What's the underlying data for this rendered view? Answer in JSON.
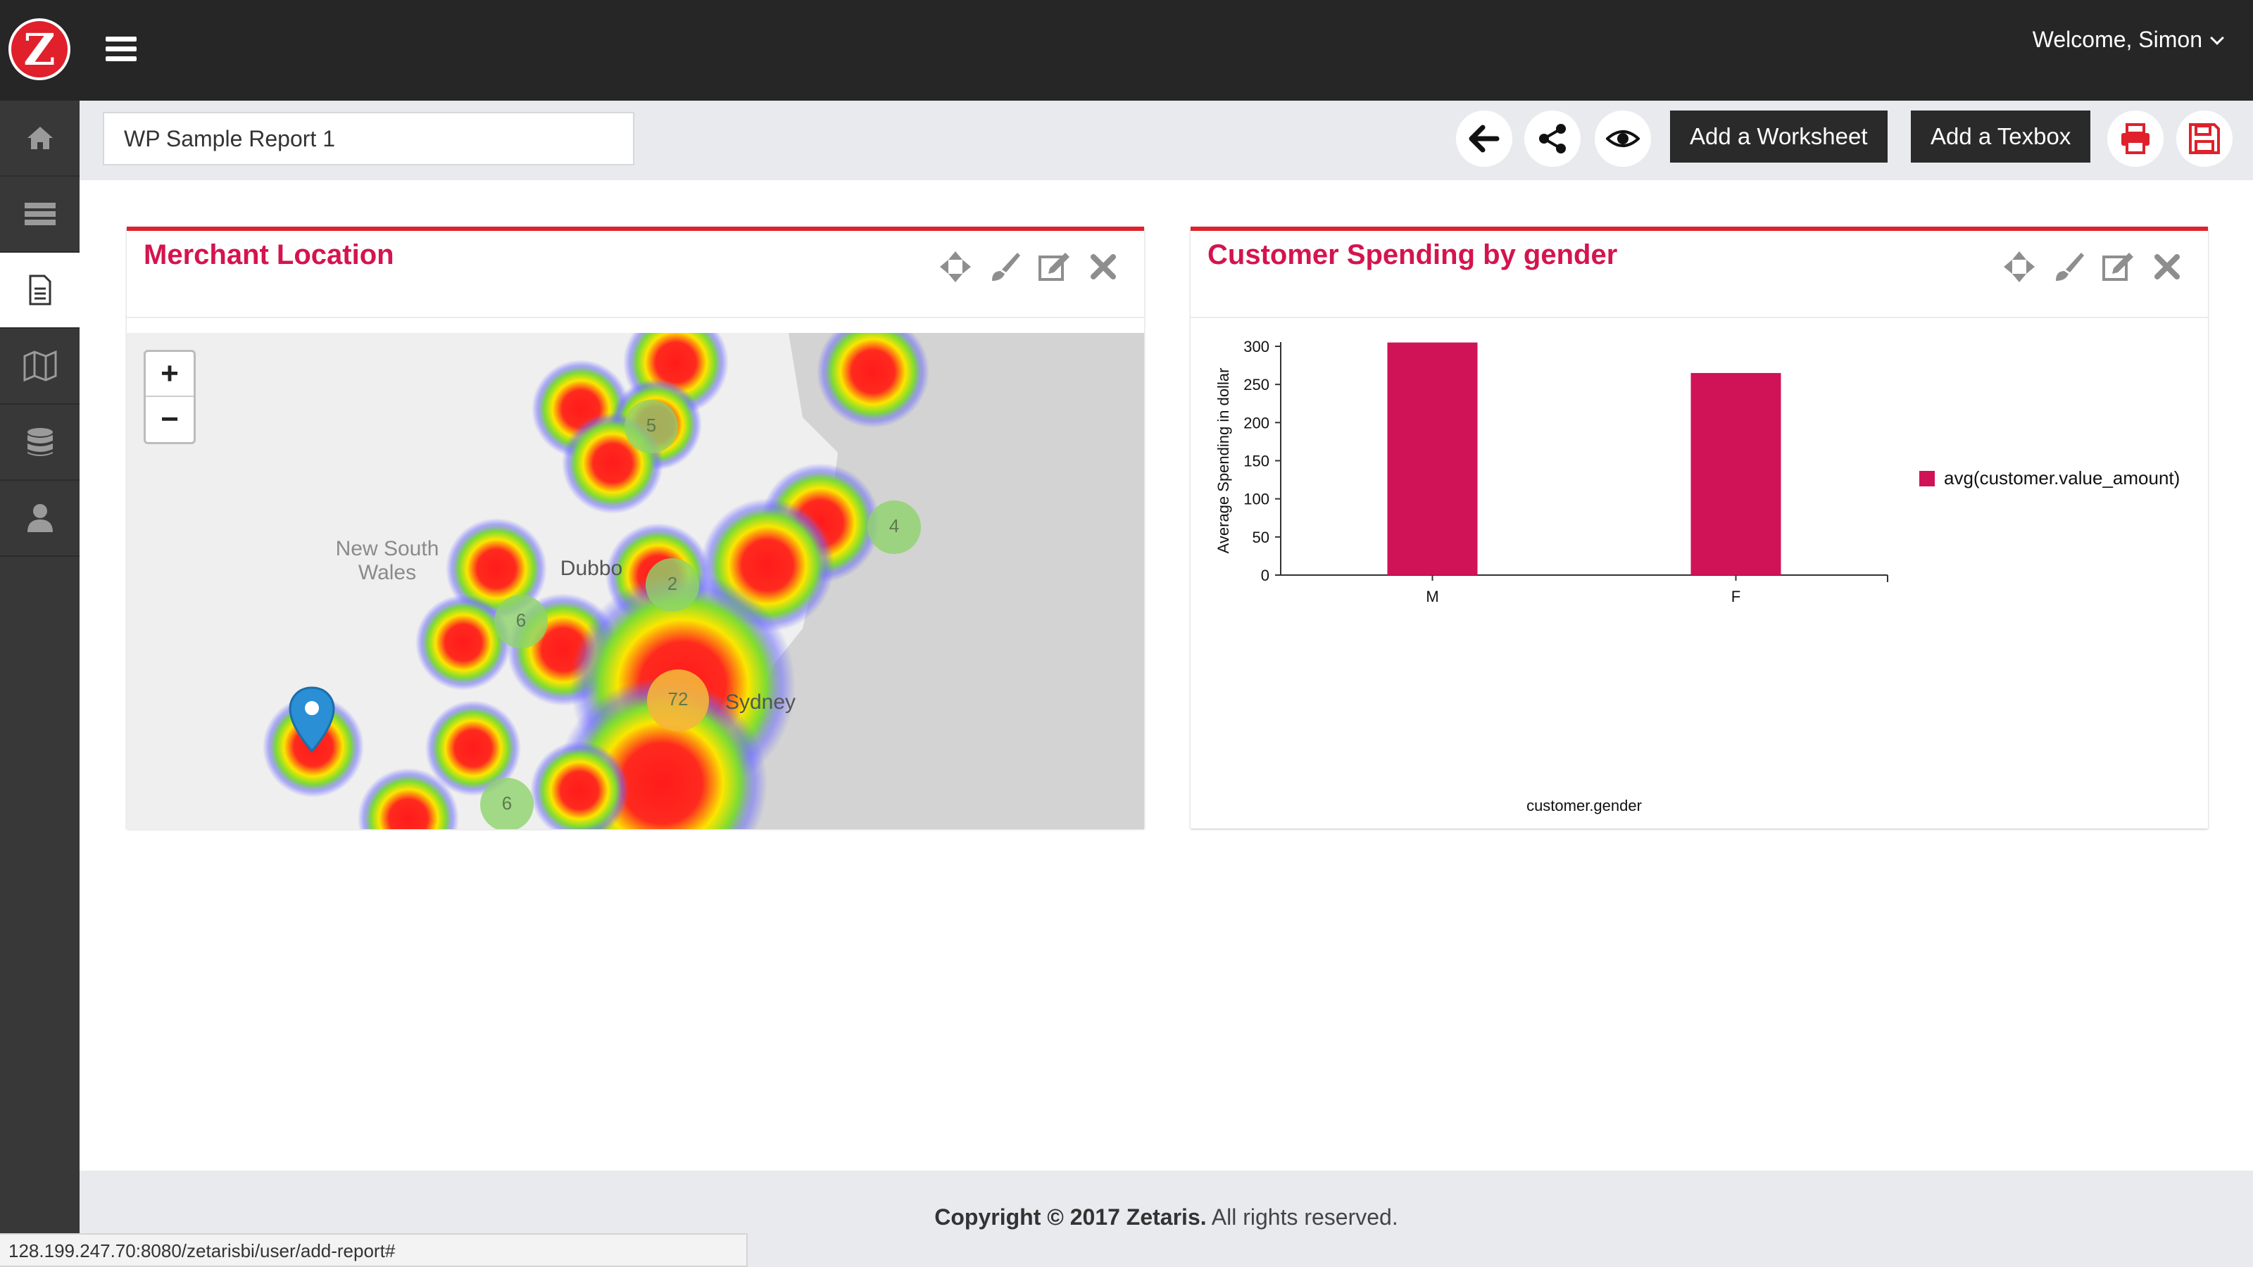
{
  "header": {
    "logo_letter": "Z",
    "welcome": "Welcome, Simon",
    "menu_icon": "hamburger-icon"
  },
  "sidebar": {
    "items": [
      {
        "icon": "home-icon",
        "active": false
      },
      {
        "icon": "server-icon",
        "active": false
      },
      {
        "icon": "report-document-icon",
        "active": true
      },
      {
        "icon": "map-icon",
        "active": false
      },
      {
        "icon": "database-icon",
        "active": false
      },
      {
        "icon": "user-icon",
        "active": false
      }
    ]
  },
  "toolbar": {
    "report_name": "WP Sample Report 1",
    "add_worksheet": "Add a Worksheet",
    "add_textbox": "Add a Texbox",
    "icons": [
      "arrow-left-icon",
      "share-icon",
      "eye-icon",
      "print-icon",
      "save-icon"
    ]
  },
  "panels": {
    "map": {
      "title": "Merchant Location",
      "zoom_in": "+",
      "zoom_out": "−",
      "labels": {
        "region": "New South Wales",
        "city_dubbo": "Dubbo",
        "city_sydney": "Sydney"
      },
      "clusters": [
        "5",
        "4",
        "2",
        "6",
        "72",
        "6"
      ]
    },
    "chart": {
      "title": "Customer Spending by gender"
    }
  },
  "chart_data": {
    "type": "bar",
    "title": "",
    "categories": [
      "M",
      "F"
    ],
    "series": [
      {
        "name": "avg(customer.value_amount)",
        "values": [
          305,
          265
        ]
      }
    ],
    "xlabel": "customer.gender",
    "ylabel": "Average Spending in dollar",
    "ylim": [
      0,
      300
    ],
    "yticks": [
      0,
      50,
      100,
      150,
      200,
      250,
      300
    ],
    "legend_position": "right",
    "grid": false,
    "colors": {
      "bar": "#d01257"
    }
  },
  "footer": {
    "copyright_bold": "Copyright © 2017 Zetaris.",
    "rights": " All rights reserved."
  },
  "statusbar": {
    "url": "128.199.247.70:8080/zetarisbi/user/add-report#"
  },
  "colors": {
    "accent": "#e0202b",
    "title": "#d4144e",
    "topbar": "#262626",
    "sidebar": "#383838"
  }
}
